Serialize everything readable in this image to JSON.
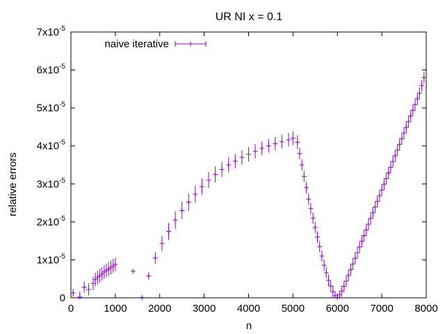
{
  "chart_data": {
    "type": "scatter",
    "title": "UR NI x = 0.1",
    "xlabel": "n",
    "ylabel": "relative errors",
    "xlim": [
      0,
      8000
    ],
    "ylim": [
      0,
      7e-05
    ],
    "grid": false,
    "legend_position": "top-left",
    "x_ticks": [
      "0",
      "1000",
      "2000",
      "3000",
      "4000",
      "5000",
      "6000",
      "7000",
      "8000"
    ],
    "y_ticks": [
      {
        "base": "0",
        "exp": ""
      },
      {
        "base": "1x10",
        "exp": "-5"
      },
      {
        "base": "2x10",
        "exp": "-5"
      },
      {
        "base": "3x10",
        "exp": "-5"
      },
      {
        "base": "4x10",
        "exp": "-5"
      },
      {
        "base": "5x10",
        "exp": "-5"
      },
      {
        "base": "6x10",
        "exp": "-5"
      },
      {
        "base": "7x10",
        "exp": "-5"
      }
    ],
    "series": [
      {
        "name": "naive iterative",
        "color": "#9400d3",
        "marker": "plus with error bars",
        "x": [
          50,
          200,
          300,
          400,
          500,
          550,
          600,
          650,
          700,
          750,
          800,
          850,
          900,
          950,
          1000,
          1400,
          1600,
          1750,
          1900,
          2050,
          2200,
          2350,
          2500,
          2650,
          2800,
          2950,
          3100,
          3250,
          3400,
          3550,
          3700,
          3850,
          4000,
          4150,
          4300,
          4450,
          4600,
          4750,
          4900,
          5000,
          5100,
          5150,
          5200,
          5250,
          5300,
          5350,
          5400,
          5450,
          5500,
          5550,
          5600,
          5650,
          5700,
          5750,
          5800,
          5850,
          5900,
          5950,
          6000,
          6050,
          6100,
          6150,
          6200,
          6250,
          6300,
          6350,
          6400,
          6450,
          6500,
          6550,
          6600,
          6650,
          6700,
          6750,
          6800,
          6850,
          6900,
          6950,
          7000,
          7050,
          7100,
          7150,
          7200,
          7250,
          7300,
          7350,
          7400,
          7450,
          7500,
          7550,
          7600,
          7650,
          7700,
          7750,
          7800,
          7850,
          7900,
          7950
        ],
        "y": [
          1.3e-06,
          2e-07,
          2.8e-06,
          2.2e-06,
          3.8e-06,
          4.8e-06,
          5.3e-06,
          5.8e-06,
          6.3e-06,
          6.8e-06,
          7.2e-06,
          7.6e-06,
          8e-06,
          8.4e-06,
          8.8e-06,
          7e-06,
          1e-07,
          5.8e-06,
          1.05e-05,
          1.43e-05,
          1.75e-05,
          2.05e-05,
          2.3e-05,
          2.52e-05,
          2.73e-05,
          2.93e-05,
          3.1e-05,
          3.25e-05,
          3.38e-05,
          3.5e-05,
          3.6e-05,
          3.7e-05,
          3.78e-05,
          3.86e-05,
          3.94e-05,
          4e-05,
          4.06e-05,
          4.11e-05,
          4.16e-05,
          4.2e-05,
          4.1e-05,
          3.8e-05,
          3.5e-05,
          3.2e-05,
          2.9e-05,
          2.6e-05,
          2.35e-05,
          2.1e-05,
          1.85e-05,
          1.6e-05,
          1.35e-05,
          1.1e-05,
          8.6e-06,
          6.6e-06,
          4.6e-06,
          3.1e-06,
          1.6e-06,
          6e-07,
          1e-07,
          8e-07,
          1.8e-06,
          3e-06,
          4.4e-06,
          5.9e-06,
          7.4e-06,
          8.9e-06,
          1.04e-05,
          1.19e-05,
          1.34e-05,
          1.49e-05,
          1.64e-05,
          1.79e-05,
          1.94e-05,
          2.09e-05,
          2.24e-05,
          2.39e-05,
          2.54e-05,
          2.69e-05,
          2.84e-05,
          2.99e-05,
          3.14e-05,
          3.29e-05,
          3.44e-05,
          3.59e-05,
          3.74e-05,
          3.89e-05,
          4.04e-05,
          4.19e-05,
          4.34e-05,
          4.49e-05,
          4.64e-05,
          4.79e-05,
          4.94e-05,
          5.09e-05,
          5.24e-05,
          5.39e-05,
          5.59e-05,
          5.8e-05
        ],
        "err": [
          1e-06,
          1.5e-06,
          1.5e-06,
          1.6e-06,
          1.8e-06,
          1.8e-06,
          1.8e-06,
          1.8e-06,
          1.8e-06,
          1.8e-06,
          1.8e-06,
          1.8e-06,
          1.8e-06,
          1.8e-06,
          1.8e-06,
          5e-07,
          3e-07,
          1e-06,
          1.6e-06,
          2e-06,
          2.2e-06,
          2.3e-06,
          2.3e-06,
          2.3e-06,
          2.2e-06,
          2.2e-06,
          2.1e-06,
          2.1e-06,
          2e-06,
          2e-06,
          1.9e-06,
          1.9e-06,
          1.9e-06,
          1.9e-06,
          1.8e-06,
          1.8e-06,
          1.8e-06,
          1.8e-06,
          1.8e-06,
          1.8e-06,
          1.8e-06,
          1.5e-06,
          1.5e-06,
          1.5e-06,
          1.5e-06,
          1.5e-06,
          1.5e-06,
          1.5e-06,
          1.5e-06,
          1.5e-06,
          1.5e-06,
          1.5e-06,
          1.5e-06,
          1.5e-06,
          1.5e-06,
          1.5e-06,
          1.5e-06,
          1e-06,
          1e-06,
          1e-06,
          1.5e-06,
          1.5e-06,
          1.5e-06,
          1.5e-06,
          1.5e-06,
          1.5e-06,
          1.5e-06,
          1.5e-06,
          1.5e-06,
          1.5e-06,
          1.5e-06,
          1.5e-06,
          1.5e-06,
          1.5e-06,
          1.5e-06,
          1.5e-06,
          1.5e-06,
          1.5e-06,
          1.5e-06,
          1.5e-06,
          1.5e-06,
          1.5e-06,
          1.5e-06,
          1.5e-06,
          1.5e-06,
          1.5e-06,
          1.5e-06,
          1.5e-06,
          1.5e-06,
          1.5e-06,
          1.5e-06,
          1.5e-06,
          1.5e-06,
          1.5e-06,
          1.5e-06,
          1.5e-06,
          1.5e-06,
          1.5e-06
        ]
      }
    ]
  }
}
